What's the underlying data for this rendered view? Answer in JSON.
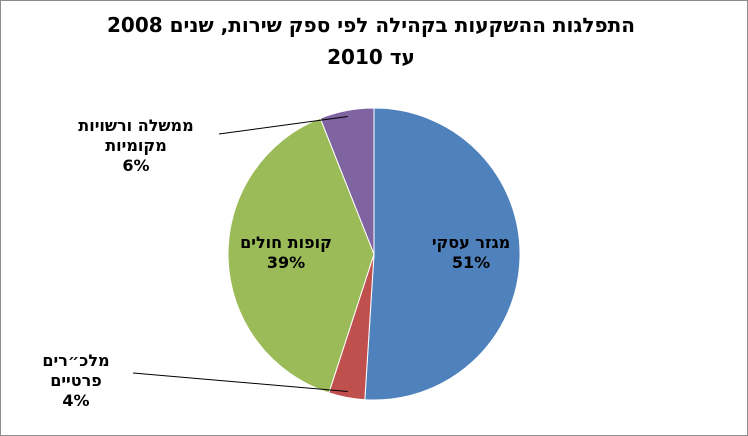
{
  "chart_data": {
    "type": "pie",
    "title_line1": "התפלגות ההשקעות בקהילה לפי ספק שירות, שנים 2008",
    "title_line2": "עד 2010",
    "slices": [
      {
        "name": "מגזר עסקי",
        "value": 51,
        "label_value": "51%",
        "color": "#4f81bd"
      },
      {
        "name": "מלכ\"רים פרטיים",
        "name_line1": "מלכ״רים",
        "name_line2": "פרטיים",
        "value": 4,
        "label_value": "4%",
        "color": "#c0504d"
      },
      {
        "name": "קופות חולים",
        "value": 39,
        "label_value": "39%",
        "color": "#9bbb59"
      },
      {
        "name": "ממשלה ורשויות מקומיות",
        "name_line1": "ממשלה ורשויות",
        "name_line2": "מקומיות",
        "value": 6,
        "label_value": "6%",
        "color": "#8064a2"
      }
    ]
  }
}
